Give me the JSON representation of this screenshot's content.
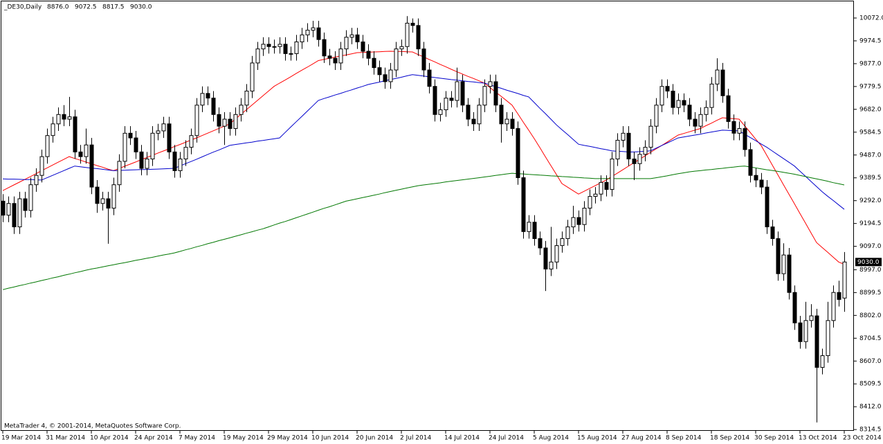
{
  "chart_data": {
    "type": "candlestick",
    "header": {
      "symbol": "_DE30,Daily",
      "ohlc": [
        {
          "value": 8876,
          "label": "8876.0"
        },
        {
          "value": 9072.5,
          "label": "9072.5"
        },
        {
          "value": 8817.5,
          "label": "8817.5"
        },
        {
          "value": 9030,
          "label": "9030.0"
        }
      ]
    },
    "last_price": {
      "value": 9030,
      "label": "9030.0"
    },
    "footer": "MetaTrader 4, © 2001-2014, MetaQuotes Software Corp.",
    "categories": [
      "19 Mar 2014",
      null,
      null,
      null,
      null,
      null,
      null,
      null,
      "31 Mar 2014",
      null,
      null,
      null,
      null,
      null,
      null,
      null,
      "10 Apr 2014",
      null,
      null,
      null,
      null,
      null,
      null,
      null,
      "24 Apr 2014",
      null,
      null,
      null,
      null,
      null,
      null,
      null,
      "7 May 2014",
      null,
      null,
      null,
      null,
      null,
      null,
      null,
      "19 May 2014",
      null,
      null,
      null,
      null,
      null,
      null,
      null,
      "29 May 2014",
      null,
      null,
      null,
      null,
      null,
      null,
      null,
      "10 Jun 2014",
      null,
      null,
      null,
      null,
      null,
      null,
      null,
      "20 Jun 2014",
      null,
      null,
      null,
      null,
      null,
      null,
      null,
      "2 Jul 2014",
      null,
      null,
      null,
      null,
      null,
      null,
      null,
      "14 Jul 2014",
      null,
      null,
      null,
      null,
      null,
      null,
      null,
      "24 Jul 2014",
      null,
      null,
      null,
      null,
      null,
      null,
      null,
      "5 Aug 2014",
      null,
      null,
      null,
      null,
      null,
      null,
      null,
      "15 Aug 2014",
      null,
      null,
      null,
      null,
      null,
      null,
      null,
      "27 Aug 2014",
      null,
      null,
      null,
      null,
      null,
      null,
      null,
      "8 Sep 2014",
      null,
      null,
      null,
      null,
      null,
      null,
      null,
      "18 Sep 2014",
      null,
      null,
      null,
      null,
      null,
      null,
      null,
      "30 Sep 2014",
      null,
      null,
      null,
      null,
      null,
      null,
      null,
      "13 Oct 2014",
      null,
      null,
      null,
      null,
      null,
      null,
      null,
      "23 Oct 2014"
    ],
    "open": [
      9290,
      9230,
      9280,
      9180,
      9300,
      9250,
      9360,
      9400,
      9480,
      9570,
      9620,
      9660,
      9640,
      9650,
      9500,
      9480,
      9530,
      9350,
      9280,
      9300,
      9260,
      9360,
      9460,
      9580,
      9560,
      9500,
      9430,
      9470,
      9580,
      9590,
      9620,
      9500,
      9420,
      9470,
      9520,
      9570,
      9700,
      9750,
      9730,
      9660,
      9610,
      9640,
      9600,
      9660,
      9700,
      9760,
      9880,
      9940,
      9960,
      9950,
      9950,
      9960,
      9920,
      9920,
      9970,
      10000,
      10020,
      10030,
      9980,
      9910,
      9900,
      9880,
      9940,
      9990,
      10000,
      9970,
      9930,
      9900,
      9860,
      9830,
      9800,
      9850,
      9940,
      9950,
      10050,
      10040,
      9940,
      9850,
      9780,
      9660,
      9680,
      9730,
      9720,
      9800,
      9700,
      9640,
      9620,
      9700,
      9780,
      9800,
      9700,
      9620,
      9640,
      9600,
      9390,
      9160,
      9200,
      9130,
      9090,
      9000,
      9030,
      9100,
      9130,
      9180,
      9220,
      9190,
      9260,
      9310,
      9320,
      9370,
      9340,
      9470,
      9550,
      9580,
      9470,
      9450,
      9490,
      9520,
      9610,
      9700,
      9780,
      9760,
      9690,
      9720,
      9700,
      9640,
      9610,
      9660,
      9690,
      9790,
      9850,
      9740,
      9630,
      9580,
      9600,
      9510,
      9400,
      9380,
      9350,
      9180,
      9130,
      8980,
      9060,
      8900,
      8770,
      8690,
      8780,
      8800,
      8580,
      8630,
      8780,
      8900,
      8876
    ],
    "high": [
      9320,
      9310,
      9310,
      9330,
      9330,
      9390,
      9430,
      9510,
      9600,
      9650,
      9690,
      9700,
      9735,
      9680,
      9530,
      9600,
      9560,
      9380,
      9330,
      9330,
      9390,
      9490,
      9610,
      9610,
      9590,
      9530,
      9500,
      9610,
      9620,
      9650,
      9650,
      9530,
      9500,
      9550,
      9600,
      9730,
      9780,
      9780,
      9760,
      9690,
      9670,
      9670,
      9690,
      9730,
      9790,
      9910,
      9970,
      9990,
      9990,
      9980,
      9990,
      9990,
      9950,
      10000,
      10030,
      10050,
      10060,
      10060,
      10010,
      9940,
      9930,
      9970,
      10020,
      10030,
      10030,
      10000,
      9960,
      9930,
      9890,
      9860,
      9880,
      9970,
      9980,
      10080,
      10070,
      10070,
      9970,
      9880,
      9810,
      9710,
      9760,
      9760,
      9860,
      9830,
      9730,
      9670,
      9730,
      9810,
      9830,
      9830,
      9730,
      9670,
      9670,
      9630,
      9420,
      9230,
      9230,
      9160,
      9120,
      9180,
      9130,
      9160,
      9210,
      9270,
      9250,
      9290,
      9340,
      9350,
      9400,
      9400,
      9500,
      9580,
      9610,
      9610,
      9500,
      9520,
      9550,
      9640,
      9730,
      9810,
      9810,
      9790,
      9750,
      9750,
      9730,
      9670,
      9690,
      9720,
      9820,
      9900,
      9880,
      9770,
      9660,
      9630,
      9630,
      9540,
      9430,
      9410,
      9380,
      9210,
      9160,
      9110,
      9090,
      8930,
      8800,
      8860,
      8850,
      8830,
      8660,
      8860,
      8930,
      8950,
      9072.5
    ],
    "low": [
      9200,
      9200,
      9150,
      9150,
      9220,
      9220,
      9330,
      9370,
      9450,
      9540,
      9590,
      9610,
      9610,
      9470,
      9450,
      9450,
      9320,
      9240,
      9250,
      9108,
      9230,
      9330,
      9430,
      9530,
      9470,
      9400,
      9400,
      9440,
      9550,
      9560,
      9470,
      9390,
      9390,
      9440,
      9490,
      9540,
      9670,
      9700,
      9630,
      9580,
      9530,
      9570,
      9570,
      9630,
      9670,
      9730,
      9850,
      9910,
      9920,
      9920,
      9920,
      9890,
      9890,
      9890,
      9940,
      9970,
      9990,
      9950,
      9880,
      9870,
      9850,
      9850,
      9910,
      9960,
      9940,
      9900,
      9870,
      9830,
      9800,
      9770,
      9770,
      9820,
      9910,
      9920,
      10010,
      9910,
      9820,
      9750,
      9630,
      9630,
      9650,
      9690,
      9690,
      9670,
      9610,
      9590,
      9590,
      9670,
      9750,
      9670,
      9540,
      9590,
      9570,
      9360,
      9130,
      9130,
      9100,
      9060,
      8906,
      8970,
      9000,
      9070,
      9100,
      9150,
      9160,
      9160,
      9230,
      9280,
      9290,
      9310,
      9310,
      9440,
      9520,
      9440,
      9380,
      9420,
      9460,
      9490,
      9580,
      9670,
      9730,
      9660,
      9660,
      9670,
      9610,
      9580,
      9580,
      9630,
      9660,
      9760,
      9710,
      9600,
      9550,
      9550,
      9480,
      9370,
      9350,
      9320,
      9150,
      9100,
      8950,
      8950,
      8870,
      8740,
      8660,
      8660,
      8750,
      8345,
      8550,
      8600,
      8750,
      8840,
      8817.5
    ],
    "close": [
      9230,
      9280,
      9180,
      9300,
      9250,
      9360,
      9400,
      9480,
      9570,
      9620,
      9660,
      9640,
      9650,
      9500,
      9480,
      9530,
      9350,
      9280,
      9300,
      9260,
      9360,
      9460,
      9580,
      9560,
      9500,
      9430,
      9470,
      9580,
      9590,
      9620,
      9500,
      9420,
      9470,
      9520,
      9570,
      9700,
      9750,
      9730,
      9660,
      9610,
      9640,
      9600,
      9660,
      9700,
      9760,
      9880,
      9940,
      9960,
      9950,
      9950,
      9960,
      9920,
      9920,
      9970,
      10000,
      10020,
      10030,
      9980,
      9910,
      9900,
      9880,
      9940,
      9990,
      10000,
      9970,
      9930,
      9900,
      9860,
      9830,
      9800,
      9850,
      9940,
      9950,
      10050,
      10040,
      9940,
      9850,
      9780,
      9660,
      9680,
      9730,
      9720,
      9800,
      9700,
      9640,
      9620,
      9700,
      9780,
      9800,
      9700,
      9620,
      9640,
      9600,
      9390,
      9160,
      9200,
      9130,
      9090,
      9000,
      9030,
      9100,
      9130,
      9180,
      9220,
      9190,
      9260,
      9310,
      9320,
      9370,
      9340,
      9470,
      9550,
      9580,
      9470,
      9450,
      9490,
      9520,
      9610,
      9700,
      9780,
      9760,
      9690,
      9720,
      9700,
      9640,
      9610,
      9660,
      9690,
      9790,
      9850,
      9740,
      9630,
      9580,
      9600,
      9510,
      9400,
      9380,
      9350,
      9180,
      9130,
      8980,
      9060,
      8900,
      8770,
      8690,
      8780,
      8800,
      8580,
      8630,
      8780,
      8900,
      8870,
      9030
    ],
    "up_color": "#ffffff",
    "down_color": "#000000",
    "overlays": [
      {
        "color": "#ff0000",
        "values": [
          9335,
          9347,
          9359,
          9371,
          9383,
          9395,
          9407,
          9420,
          9432,
          9444,
          9456,
          9468,
          9480,
          9472,
          9465,
          9457,
          9450,
          9442,
          9435,
          9427,
          9420,
          9429,
          9439,
          9448,
          9457,
          9467,
          9476,
          9485,
          9495,
          9504,
          9513,
          9523,
          9532,
          9541,
          9551,
          9560,
          9570,
          9580,
          9590,
          9600,
          9610,
          9620,
          9640,
          9660,
          9680,
          9700,
          9720,
          9740,
          9760,
          9780,
          9794,
          9807,
          9821,
          9835,
          9849,
          9862,
          9876,
          9890,
          9895,
          9900,
          9905,
          9910,
          9914,
          9919,
          9924,
          9925,
          9926,
          9927,
          9928,
          9929,
          9930,
          9929,
          9929,
          9928,
          9927,
          9916,
          9906,
          9895,
          9885,
          9874,
          9864,
          9853,
          9843,
          9833,
          9823,
          9814,
          9804,
          9794,
          9775,
          9756,
          9738,
          9719,
          9700,
          9664,
          9628,
          9593,
          9557,
          9519,
          9480,
          9442,
          9404,
          9365,
          9350,
          9335,
          9320,
          9332,
          9344,
          9356,
          9368,
          9380,
          9395,
          9409,
          9424,
          9439,
          9454,
          9468,
          9483,
          9498,
          9513,
          9527,
          9542,
          9557,
          9572,
          9579,
          9586,
          9593,
          9600,
          9612,
          9623,
          9635,
          9646,
          9644,
          9642,
          9640,
          9612,
          9584,
          9555,
          9527,
          9486,
          9444,
          9403,
          9361,
          9320,
          9279,
          9237,
          9196,
          9154,
          9113,
          9092,
          9072,
          9051,
          9030,
          9020
        ]
      },
      {
        "color": "#0000cc",
        "values": [
          9385,
          9384,
          9384,
          9383,
          9382,
          9382,
          9381,
          9380,
          9390,
          9400,
          9410,
          9420,
          9430,
          9440,
          9437,
          9434,
          9431,
          9429,
          9426,
          9423,
          9420,
          9421,
          9422,
          9423,
          9424,
          9425,
          9425,
          9426,
          9427,
          9428,
          9429,
          9430,
          9440,
          9450,
          9459,
          9469,
          9479,
          9489,
          9499,
          9508,
          9518,
          9528,
          9532,
          9535,
          9539,
          9542,
          9546,
          9549,
          9553,
          9556,
          9560,
          9583,
          9606,
          9629,
          9651,
          9674,
          9697,
          9720,
          9728,
          9735,
          9743,
          9750,
          9758,
          9765,
          9773,
          9780,
          9788,
          9793,
          9798,
          9804,
          9809,
          9814,
          9819,
          9825,
          9830,
          9827,
          9824,
          9821,
          9818,
          9815,
          9812,
          9809,
          9807,
          9804,
          9801,
          9799,
          9796,
          9794,
          9787,
          9779,
          9772,
          9764,
          9757,
          9750,
          9742,
          9735,
          9711,
          9687,
          9664,
          9640,
          9616,
          9595,
          9575,
          9554,
          9533,
          9528,
          9524,
          9519,
          9514,
          9510,
          9505,
          9503,
          9502,
          9500,
          9500,
          9501,
          9503,
          9505,
          9516,
          9527,
          9538,
          9549,
          9560,
          9564,
          9568,
          9572,
          9576,
          9581,
          9585,
          9589,
          9593,
          9592,
          9591,
          9590,
          9576,
          9562,
          9548,
          9534,
          9520,
          9504,
          9488,
          9472,
          9456,
          9440,
          9418,
          9396,
          9374,
          9352,
          9330,
          9311,
          9293,
          9274,
          9255
        ]
      },
      {
        "color": "#007700",
        "values": [
          8912,
          8918,
          8923,
          8929,
          8934,
          8940,
          8945,
          8951,
          8956,
          8962,
          8967,
          8973,
          8978,
          8984,
          8989,
          8995,
          9000,
          9004,
          9009,
          9014,
          9018,
          9023,
          9027,
          9032,
          9037,
          9041,
          9046,
          9050,
          9055,
          9060,
          9064,
          9069,
          9075,
          9082,
          9088,
          9095,
          9101,
          9108,
          9114,
          9121,
          9127,
          9133,
          9140,
          9146,
          9153,
          9159,
          9166,
          9172,
          9180,
          9188,
          9196,
          9203,
          9211,
          9219,
          9227,
          9235,
          9243,
          9251,
          9259,
          9266,
          9274,
          9282,
          9290,
          9295,
          9300,
          9305,
          9310,
          9315,
          9320,
          9326,
          9331,
          9336,
          9341,
          9346,
          9351,
          9356,
          9359,
          9362,
          9365,
          9368,
          9372,
          9375,
          9378,
          9381,
          9384,
          9387,
          9390,
          9393,
          9396,
          9400,
          9403,
          9406,
          9409,
          9407,
          9406,
          9404,
          9403,
          9401,
          9400,
          9398,
          9397,
          9395,
          9394,
          9392,
          9391,
          9389,
          9388,
          9386,
          9386,
          9386,
          9386,
          9386,
          9386,
          9386,
          9386,
          9386,
          9386,
          9386,
          9390,
          9394,
          9398,
          9403,
          9407,
          9411,
          9415,
          9418,
          9420,
          9423,
          9425,
          9428,
          9430,
          9433,
          9435,
          9438,
          9440,
          9436,
          9432,
          9428,
          9424,
          9421,
          9417,
          9413,
          9409,
          9405,
          9400,
          9395,
          9390,
          9385,
          9380,
          9375,
          9369,
          9364,
          9359
        ]
      }
    ],
    "ylim": [
      8309,
      10143
    ],
    "yticks": [
      {
        "value": 10072,
        "label": "10072.0"
      },
      {
        "value": 9974.5,
        "label": "9974.5"
      },
      {
        "value": 9877,
        "label": "9877.0"
      },
      {
        "value": 9779.5,
        "label": "9779.5"
      },
      {
        "value": 9682,
        "label": "9682.0"
      },
      {
        "value": 9584.5,
        "label": "9584.5"
      },
      {
        "value": 9487,
        "label": "9487.0"
      },
      {
        "value": 9389.5,
        "label": "9389.5"
      },
      {
        "value": 9292,
        "label": "9292.0"
      },
      {
        "value": 9194.5,
        "label": "9194.5"
      },
      {
        "value": 9097,
        "label": "9097.0"
      },
      {
        "value": 8997,
        "label": "8997.0"
      },
      {
        "value": 8899.5,
        "label": "8899.5"
      },
      {
        "value": 8802,
        "label": "8802.0"
      },
      {
        "value": 8704.5,
        "label": "8704.5"
      },
      {
        "value": 8607,
        "label": "8607.0"
      },
      {
        "value": 8509.5,
        "label": "8509.5"
      },
      {
        "value": 8412,
        "label": "8412.0"
      },
      {
        "value": 8314.5,
        "label": "8314.5"
      }
    ]
  }
}
